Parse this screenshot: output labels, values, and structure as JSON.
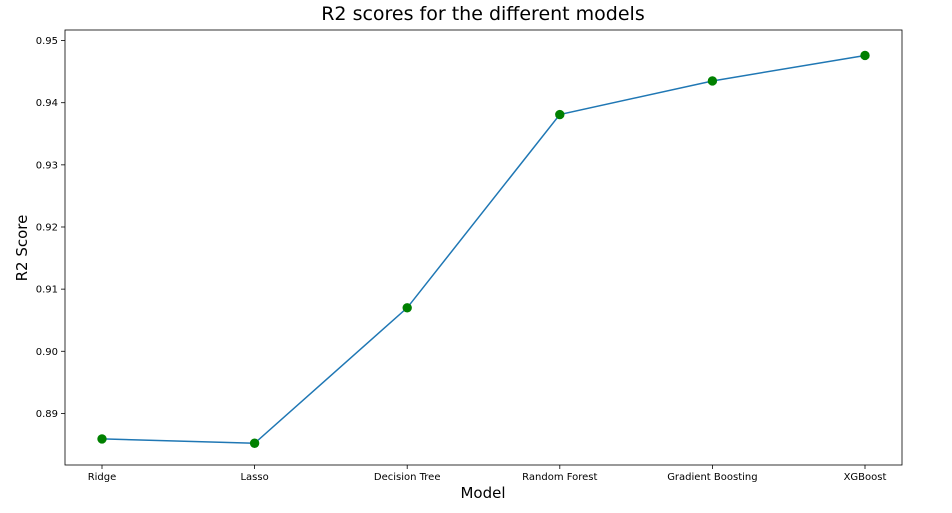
{
  "chart_data": {
    "type": "line",
    "title": "R2 scores for the different models",
    "xlabel": "Model",
    "ylabel": "R2 Score",
    "categories": [
      "Ridge",
      "Lasso",
      "Decision Tree",
      "Random Forest",
      "Gradient Boosting",
      "XGBoost"
    ],
    "series": [
      {
        "values": [
          0.8859,
          0.8852,
          0.907,
          0.9381,
          0.9435,
          0.9476
        ]
      }
    ],
    "ylim": [
      0.8817,
      0.9517
    ],
    "yticks": [
      0.89,
      0.9,
      0.91,
      0.92,
      0.93,
      0.94,
      0.95
    ],
    "ytick_labels": [
      "0.89",
      "0.90",
      "0.91",
      "0.92",
      "0.93",
      "0.94",
      "0.95"
    ],
    "grid": false,
    "legend": "none",
    "colors": {
      "line": "#1f77b4",
      "marker": "#008000",
      "axes": "#000000"
    }
  }
}
